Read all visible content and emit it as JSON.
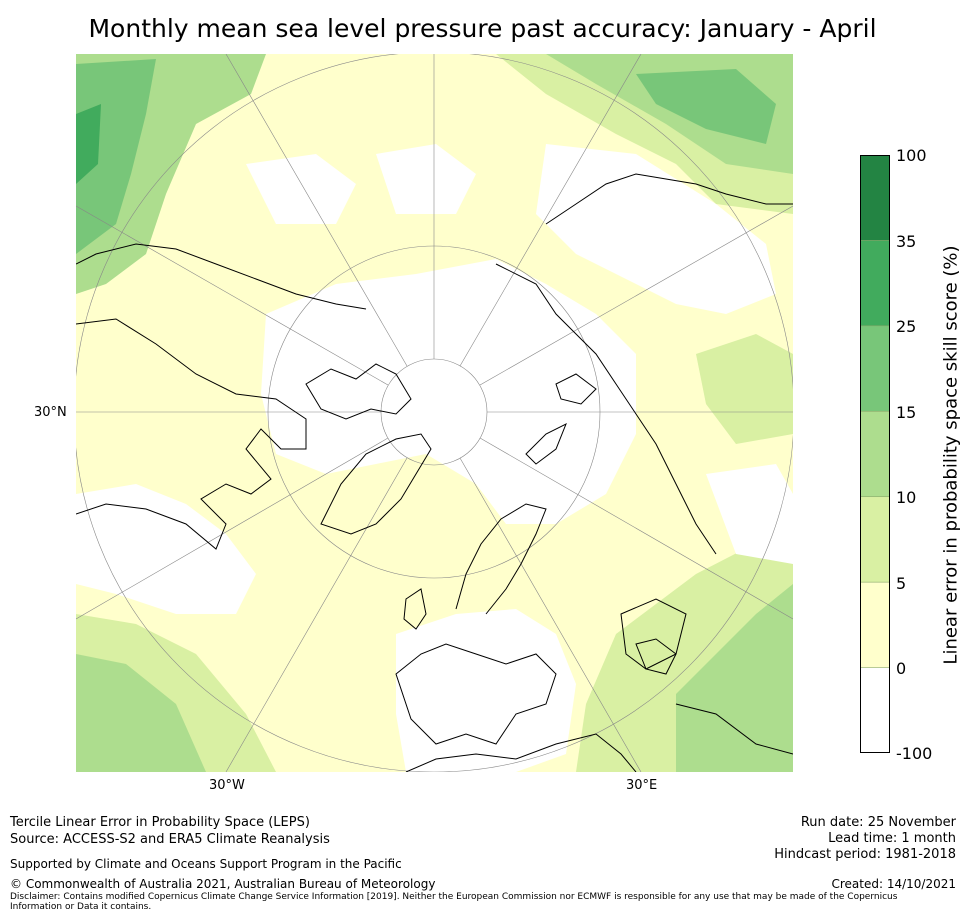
{
  "title": "Monthly mean sea level pressure past accuracy: January - April",
  "map": {
    "projection": "north-polar-stereographic",
    "lat_label": "30°N",
    "lon_labels": [
      "30°W",
      "30°E"
    ],
    "palette": {
      "white": "#ffffff",
      "cream": "#ffffcc",
      "light": "#d9f0a3",
      "mid": "#addd8e",
      "green": "#78c679",
      "deep": "#41ab5d"
    }
  },
  "colorbar": {
    "title": "Linear error in probability space skill score (%)",
    "ticks": [
      "100",
      "35",
      "25",
      "15",
      "10",
      "5",
      "0",
      "-100"
    ],
    "bins": [
      {
        "range": "35 to 100",
        "color": "#238443"
      },
      {
        "range": "25 to 35",
        "color": "#41ab5d"
      },
      {
        "range": "15 to 25",
        "color": "#78c679"
      },
      {
        "range": "10 to 15",
        "color": "#addd8e"
      },
      {
        "range": "5 to 10",
        "color": "#d9f0a3"
      },
      {
        "range": "0 to 5",
        "color": "#ffffcc"
      },
      {
        "range": "-100 to 0",
        "color": "#ffffff"
      }
    ]
  },
  "footer": {
    "method": "Tercile Linear Error in Probability Space (LEPS)",
    "source": "Source: ACCESS-S2 and ERA5 Climate Reanalysis",
    "support": "Supported by Climate and Oceans Support Program in the Pacific",
    "copyright": "© Commonwealth of Australia 2021, Australian Bureau of Meteorology",
    "disclaimer": "Disclaimer: Contains modified Copernicus Climate Change Service Information [2019]. Neither the European Commission nor ECMWF is responsible for any use that may be made of the Copernicus Information or Data it contains.",
    "run_date": "Run date: 25 November",
    "lead_time": "Lead time: 1 month",
    "hindcast": "Hindcast period: 1981-2018",
    "created": "Created: 14/10/2021"
  }
}
